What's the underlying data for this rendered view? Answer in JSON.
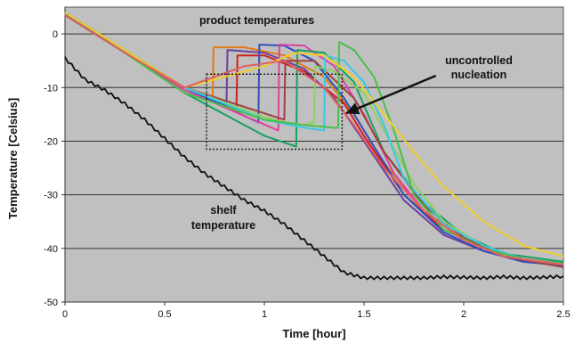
{
  "chart_data": {
    "type": "line",
    "title": "",
    "xlabel": "Time [hour]",
    "ylabel": "Temperature [Celsius]",
    "xlim": [
      0,
      2.5
    ],
    "ylim": [
      -50,
      5
    ],
    "xticks": [
      0,
      0.5,
      1,
      1.5,
      2,
      2.5
    ],
    "yticks": [
      0,
      -10,
      -20,
      -30,
      -40,
      -50
    ],
    "xtick_labels": [
      "0",
      "0.5",
      "1",
      "1.5",
      "2",
      "2.5"
    ],
    "ytick_labels": [
      "0",
      "-10",
      "-20",
      "-30",
      "-40",
      "-50"
    ],
    "grid": "horizontal",
    "background_color": "#c0c0c0",
    "annotations": [
      {
        "text": "product temperatures"
      },
      {
        "text": "uncontrolled"
      },
      {
        "text": "nucleation"
      },
      {
        "text": "shelf"
      },
      {
        "text": "temperature"
      }
    ],
    "highlight_box": {
      "x": [
        0.71,
        1.39
      ],
      "y": [
        -21.5,
        -7.5
      ]
    },
    "arrow": {
      "from": [
        1.86,
        -7.8
      ],
      "to": [
        1.41,
        -14.8
      ]
    },
    "shelf_series": {
      "color": "#111111",
      "x": [
        0,
        0.1,
        0.2,
        0.3,
        0.4,
        0.5,
        0.6,
        0.7,
        0.8,
        0.9,
        1.0,
        1.1,
        1.2,
        1.3,
        1.4,
        1.5,
        1.6,
        1.7,
        1.8,
        1.9,
        2.0,
        2.1,
        2.2,
        2.3,
        2.4,
        2.5
      ],
      "y": [
        -4.5,
        -8.5,
        -10.5,
        -13,
        -16,
        -19.5,
        -23,
        -26,
        -28.5,
        -31,
        -33,
        -35.5,
        -38.5,
        -41.5,
        -44.5,
        -45.5,
        -45.5,
        -45.5,
        -45.5,
        -45.3,
        -45.4,
        -45.5,
        -45.3,
        -45.5,
        -45.4,
        -45.2
      ]
    },
    "product_series": [
      {
        "color": "#e07b18",
        "x": [
          0,
          0.3,
          0.6,
          0.74,
          0.745,
          0.9,
          1.1,
          1.3,
          1.45,
          1.6,
          1.8,
          2.0,
          2.2,
          2.5
        ],
        "y": [
          4,
          -3,
          -10,
          -12.5,
          -2.5,
          -2.5,
          -4,
          -8,
          -15,
          -24,
          -33,
          -38,
          -41.5,
          -43
        ]
      },
      {
        "color": "#d02020",
        "x": [
          0,
          0.3,
          0.6,
          0.86,
          0.865,
          1.0,
          1.2,
          1.4,
          1.5,
          1.7,
          1.9,
          2.1,
          2.3,
          2.5
        ],
        "y": [
          4,
          -3,
          -10,
          -14,
          -4,
          -4,
          -7,
          -13,
          -19,
          -30,
          -36.5,
          -40,
          -42,
          -43
        ]
      },
      {
        "color": "#6b3fa0",
        "x": [
          0,
          0.3,
          0.6,
          0.81,
          0.815,
          1.0,
          1.2,
          1.35,
          1.5,
          1.7,
          1.9,
          2.1,
          2.3,
          2.5
        ],
        "y": [
          3.8,
          -3,
          -10,
          -13.5,
          -3,
          -3.5,
          -6.5,
          -12,
          -20,
          -31,
          -37.5,
          -40.5,
          -42.5,
          -43
        ]
      },
      {
        "color": "#3050c0",
        "x": [
          0,
          0.3,
          0.6,
          0.97,
          0.975,
          1.1,
          1.25,
          1.4,
          1.55,
          1.7,
          1.9,
          2.1,
          2.3,
          2.5
        ],
        "y": [
          4,
          -3,
          -10,
          -16.5,
          -2,
          -2.2,
          -5,
          -12,
          -21,
          -30,
          -37,
          -40.5,
          -42.5,
          -43.2
        ]
      },
      {
        "color": "#e040a0",
        "x": [
          0,
          0.3,
          0.6,
          1.07,
          1.075,
          1.2,
          1.35,
          1.5,
          1.65,
          1.8,
          2.0,
          2.2,
          2.5
        ],
        "y": [
          3.5,
          -3.5,
          -10.5,
          -18,
          -2,
          -2.2,
          -6,
          -15,
          -26,
          -33,
          -38.5,
          -41.5,
          -43
        ]
      },
      {
        "color": "#18a060",
        "x": [
          0,
          0.3,
          0.6,
          0.8,
          1.0,
          1.16,
          1.165,
          1.3,
          1.45,
          1.6,
          1.8,
          2.0,
          2.2,
          2.5
        ],
        "y": [
          3.5,
          -3.5,
          -11,
          -15,
          -19,
          -21,
          -3,
          -3.5,
          -9,
          -22,
          -31.5,
          -37.5,
          -41,
          -42.5
        ]
      },
      {
        "color": "#a04040",
        "x": [
          0,
          0.3,
          0.6,
          1.1,
          1.105,
          1.25,
          1.45,
          1.6,
          1.8,
          2.0,
          2.2,
          2.5
        ],
        "y": [
          4,
          -3,
          -10,
          -16,
          -5,
          -5,
          -12,
          -22,
          -32,
          -38,
          -41.5,
          -43.5
        ]
      },
      {
        "color": "#8fd060",
        "x": [
          0,
          0.3,
          0.6,
          1.0,
          1.1,
          1.2,
          1.25,
          1.255,
          1.35,
          1.5,
          1.6,
          1.75,
          1.9,
          2.1,
          2.3,
          2.5
        ],
        "y": [
          4,
          -3,
          -10,
          -15.5,
          -16.5,
          -17,
          -16.5,
          -6,
          -7,
          -11,
          -18,
          -28,
          -35,
          -39.5,
          -42,
          -43
        ]
      },
      {
        "color": "#3ac8e8",
        "x": [
          0,
          0.3,
          0.6,
          1.0,
          1.2,
          1.3,
          1.305,
          1.4,
          1.5,
          1.6,
          1.7,
          1.9,
          2.1,
          2.3,
          2.5
        ],
        "y": [
          4,
          -3,
          -10,
          -16,
          -17.5,
          -18,
          -4,
          -5,
          -9,
          -17,
          -27,
          -35.5,
          -39.5,
          -42,
          -43
        ]
      },
      {
        "color": "#48c048",
        "x": [
          0,
          0.3,
          0.6,
          1.0,
          1.2,
          1.35,
          1.37,
          1.375,
          1.45,
          1.55,
          1.65,
          1.75,
          1.9,
          2.1,
          2.3,
          2.5
        ],
        "y": [
          3.5,
          -3.5,
          -11,
          -16,
          -17,
          -17.5,
          -17.5,
          -1.5,
          -3,
          -8,
          -18,
          -30,
          -36.5,
          -40,
          -42,
          -42.8
        ]
      },
      {
        "color": "#f0d028",
        "x": [
          0,
          0.3,
          0.6,
          1.0,
          1.15,
          1.3,
          1.45,
          1.6,
          1.75,
          1.9,
          2.1,
          2.3,
          2.5
        ],
        "y": [
          4,
          -3,
          -10,
          -6,
          -3.5,
          -4,
          -8,
          -15,
          -22,
          -28.5,
          -35,
          -39.5,
          -41.5
        ]
      },
      {
        "color": "#e06060",
        "x": [
          0,
          0.3,
          0.6,
          0.9,
          1.1,
          1.3,
          1.45,
          1.6,
          1.8,
          2.0,
          2.2,
          2.5
        ],
        "y": [
          3.5,
          -3.5,
          -10,
          -6,
          -5,
          -10,
          -17,
          -25,
          -33,
          -38.5,
          -41.5,
          -43
        ]
      }
    ]
  }
}
